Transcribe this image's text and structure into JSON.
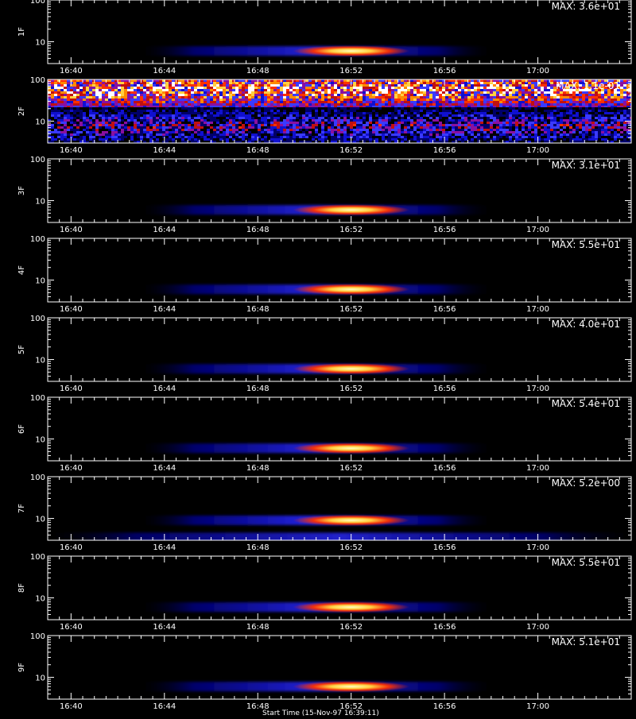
{
  "chart_data": [
    {
      "type": "heatmap",
      "panel_label": "1F",
      "max_text": "MAX: 3.6e+01",
      "y_scale": "log",
      "ylim": [
        3,
        100
      ],
      "y_tick_labels": [
        "10",
        "100"
      ],
      "xlim": [
        "16:39",
        "17:04"
      ],
      "x_tick_labels": [
        "16:40",
        "16:44",
        "16:48",
        "16:52",
        "16:56",
        "17:00"
      ],
      "colormap": "black-blue-red-yellow-white",
      "features": [
        {
          "kind": "band",
          "t_start": "16:43",
          "t_end": "16:58",
          "y_center": 6,
          "intensity": 0.45
        },
        {
          "kind": "peak",
          "t_start": "16:51",
          "t_end": "16:53",
          "y_center": 6,
          "intensity": 1.0
        }
      ]
    },
    {
      "type": "heatmap",
      "panel_label": "2F",
      "max_text": "MAX: 1.1e-01",
      "y_scale": "log",
      "ylim": [
        3,
        100
      ],
      "y_tick_labels": [
        "10",
        "100"
      ],
      "xlim": [
        "16:39",
        "17:04"
      ],
      "x_tick_labels": [
        "16:40",
        "16:44",
        "16:48",
        "16:52",
        "16:56",
        "17:00"
      ],
      "colormap": "black-blue-red-yellow-white",
      "features": [
        {
          "kind": "noise",
          "t_start": "16:39",
          "t_end": "17:04",
          "y_center": 60,
          "intensity": 0.8
        },
        {
          "kind": "noise",
          "t_start": "16:39",
          "t_end": "17:04",
          "y_center": 8,
          "intensity": 0.55
        }
      ]
    },
    {
      "type": "heatmap",
      "panel_label": "3F",
      "max_text": "MAX: 3.1e+01",
      "y_scale": "log",
      "ylim": [
        3,
        100
      ],
      "y_tick_labels": [
        "10",
        "100"
      ],
      "xlim": [
        "16:39",
        "17:04"
      ],
      "x_tick_labels": [
        "16:40",
        "16:44",
        "16:48",
        "16:52",
        "16:56",
        "17:00"
      ],
      "colormap": "black-blue-red-yellow-white",
      "features": [
        {
          "kind": "band",
          "t_start": "16:43",
          "t_end": "16:58",
          "y_center": 6,
          "intensity": 0.45
        },
        {
          "kind": "peak",
          "t_start": "16:51",
          "t_end": "16:53",
          "y_center": 6,
          "intensity": 1.0
        }
      ]
    },
    {
      "type": "heatmap",
      "panel_label": "4F",
      "max_text": "MAX: 5.5e+01",
      "y_scale": "log",
      "ylim": [
        3,
        100
      ],
      "y_tick_labels": [
        "10",
        "100"
      ],
      "xlim": [
        "16:39",
        "17:04"
      ],
      "x_tick_labels": [
        "16:40",
        "16:44",
        "16:48",
        "16:52",
        "16:56",
        "17:00"
      ],
      "colormap": "black-blue-red-yellow-white",
      "features": [
        {
          "kind": "band",
          "t_start": "16:43",
          "t_end": "16:58",
          "y_center": 6,
          "intensity": 0.45
        },
        {
          "kind": "peak",
          "t_start": "16:51",
          "t_end": "16:53",
          "y_center": 6,
          "intensity": 1.0
        }
      ]
    },
    {
      "type": "heatmap",
      "panel_label": "5F",
      "max_text": "MAX: 4.0e+01",
      "y_scale": "log",
      "ylim": [
        3,
        100
      ],
      "y_tick_labels": [
        "10",
        "100"
      ],
      "xlim": [
        "16:39",
        "17:04"
      ],
      "x_tick_labels": [
        "16:40",
        "16:44",
        "16:48",
        "16:52",
        "16:56",
        "17:00"
      ],
      "colormap": "black-blue-red-yellow-white",
      "features": [
        {
          "kind": "band",
          "t_start": "16:43",
          "t_end": "16:58",
          "y_center": 6,
          "intensity": 0.45
        },
        {
          "kind": "peak",
          "t_start": "16:51",
          "t_end": "16:53",
          "y_center": 6,
          "intensity": 1.0
        }
      ]
    },
    {
      "type": "heatmap",
      "panel_label": "6F",
      "max_text": "MAX: 5.4e+01",
      "y_scale": "log",
      "ylim": [
        3,
        100
      ],
      "y_tick_labels": [
        "10",
        "100"
      ],
      "xlim": [
        "16:39",
        "17:04"
      ],
      "x_tick_labels": [
        "16:40",
        "16:44",
        "16:48",
        "16:52",
        "16:56",
        "17:00"
      ],
      "colormap": "black-blue-red-yellow-white",
      "features": [
        {
          "kind": "band",
          "t_start": "16:43",
          "t_end": "16:58",
          "y_center": 6,
          "intensity": 0.45
        },
        {
          "kind": "peak",
          "t_start": "16:51",
          "t_end": "16:53",
          "y_center": 6,
          "intensity": 1.0
        }
      ]
    },
    {
      "type": "heatmap",
      "panel_label": "7F",
      "max_text": "MAX: 5.2e+00",
      "y_scale": "log",
      "ylim": [
        3,
        100
      ],
      "y_tick_labels": [
        "10",
        "100"
      ],
      "xlim": [
        "16:39",
        "17:04"
      ],
      "x_tick_labels": [
        "16:40",
        "16:44",
        "16:48",
        "16:52",
        "16:56",
        "17:00"
      ],
      "colormap": "black-blue-red-yellow-white",
      "features": [
        {
          "kind": "band",
          "t_start": "16:43",
          "t_end": "16:58",
          "y_center": 9,
          "intensity": 0.5
        },
        {
          "kind": "band",
          "t_start": "16:39",
          "t_end": "17:04",
          "y_center": 3.5,
          "intensity": 0.4
        },
        {
          "kind": "peak",
          "t_start": "16:51",
          "t_end": "16:53",
          "y_center": 9,
          "intensity": 1.0
        }
      ]
    },
    {
      "type": "heatmap",
      "panel_label": "8F",
      "max_text": "MAX: 5.5e+01",
      "y_scale": "log",
      "ylim": [
        3,
        100
      ],
      "y_tick_labels": [
        "10",
        "100"
      ],
      "xlim": [
        "16:39",
        "17:04"
      ],
      "x_tick_labels": [
        "16:40",
        "16:44",
        "16:48",
        "16:52",
        "16:56",
        "17:00"
      ],
      "colormap": "black-blue-red-yellow-white",
      "features": [
        {
          "kind": "band",
          "t_start": "16:43",
          "t_end": "16:58",
          "y_center": 6,
          "intensity": 0.45
        },
        {
          "kind": "peak",
          "t_start": "16:51",
          "t_end": "16:53",
          "y_center": 6,
          "intensity": 1.0
        }
      ]
    },
    {
      "type": "heatmap",
      "panel_label": "9F",
      "max_text": "MAX: 5.1e+01",
      "y_scale": "log",
      "ylim": [
        3,
        100
      ],
      "y_tick_labels": [
        "10",
        "100"
      ],
      "xlim": [
        "16:39",
        "17:04"
      ],
      "x_tick_labels": [
        "16:40",
        "16:44",
        "16:48",
        "16:52",
        "16:56",
        "17:00"
      ],
      "colormap": "black-blue-red-yellow-white",
      "features": [
        {
          "kind": "band",
          "t_start": "16:43",
          "t_end": "16:58",
          "y_center": 6,
          "intensity": 0.45
        },
        {
          "kind": "peak",
          "t_start": "16:51",
          "t_end": "16:53",
          "y_center": 6,
          "intensity": 1.0
        }
      ]
    }
  ],
  "colors": {
    "background": "#000000",
    "axes": "#ffffff",
    "band_low": "#00008a",
    "band_mid": "#2a2aff",
    "hot": "#ff3000",
    "peak": "#ffffc0"
  },
  "footer_text": "Start Time (15-Nov-97 16:39:11)"
}
